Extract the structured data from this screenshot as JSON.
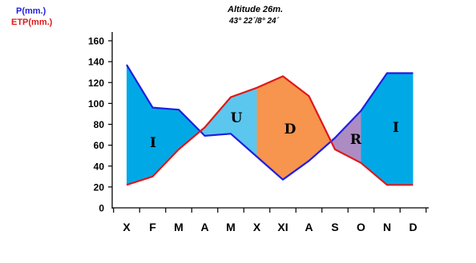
{
  "header": {
    "p_label": "P(mm.)",
    "etp_label": "ETP(mm.)",
    "title_line1": "Altitude  26m.",
    "title_line2": "43° 22´/8° 24´"
  },
  "chart_data": {
    "type": "line",
    "categories": [
      "X",
      "F",
      "M",
      "A",
      "M",
      "X",
      "XI",
      "A",
      "S",
      "O",
      "N",
      "D"
    ],
    "ylim": [
      0,
      160
    ],
    "yticks": [
      0,
      20,
      40,
      60,
      80,
      100,
      120,
      140,
      160
    ],
    "grid": false,
    "series": [
      {
        "name": "P(mm.)",
        "color": "#1f1fe0",
        "values": [
          137,
          96,
          94,
          69,
          71,
          49,
          27,
          45,
          67,
          93,
          129,
          129
        ]
      },
      {
        "name": "ETP(mm.)",
        "color": "#e01818",
        "values": [
          22,
          30,
          56,
          77,
          106,
          115,
          126,
          107,
          56,
          43,
          22,
          22
        ]
      }
    ],
    "zones": [
      {
        "label": "I",
        "color": "#00a9e6"
      },
      {
        "label": "U",
        "color": "#5bc6ee"
      },
      {
        "label": "D",
        "color": "#f7944d"
      },
      {
        "label": "R",
        "color": "#ad8cc4"
      },
      {
        "label": "I",
        "color": "#00a9e6"
      }
    ]
  }
}
